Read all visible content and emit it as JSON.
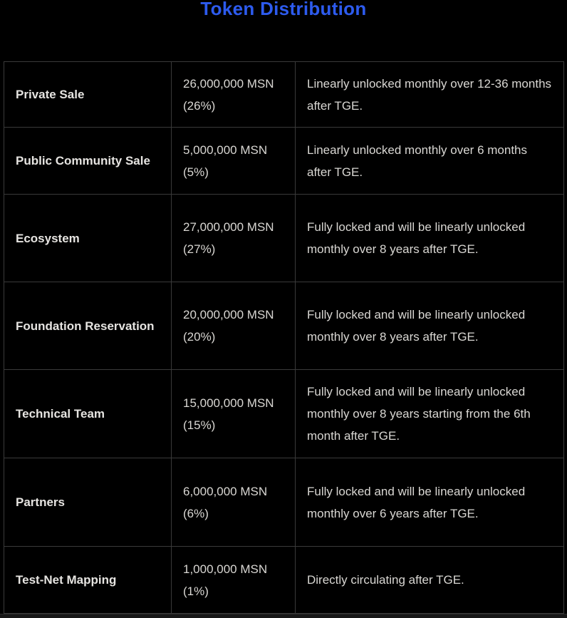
{
  "page": {
    "background": "#000000"
  },
  "title": {
    "text": "Token Distribution",
    "color": "#2d5bee"
  },
  "table": {
    "border_color": "#3a3a3a",
    "columns": [
      "category",
      "allocation",
      "unlock_schedule"
    ],
    "rows": [
      {
        "name": "Private Sale",
        "allocation": "26,000,000 MSN (26%)",
        "description": "Linearly unlocked monthly over 12-36 months after TGE."
      },
      {
        "name": "Public Community Sale",
        "allocation": "5,000,000 MSN (5%)",
        "description": "Linearly unlocked monthly over 6 months after TGE."
      },
      {
        "name": "Ecosystem",
        "allocation": "27,000,000 MSN (27%)",
        "description": "Fully locked and will be linearly unlocked monthly over 8 years after TGE."
      },
      {
        "name": "Foundation Reservation",
        "allocation": "20,000,000 MSN (20%)",
        "description": "Fully locked and will be linearly unlocked monthly over 8 years after TGE."
      },
      {
        "name": "Technical Team",
        "allocation": "15,000,000 MSN (15%)",
        "description": "Fully locked and will be linearly unlocked monthly over 8 years starting from the 6th month after TGE."
      },
      {
        "name": "Partners",
        "allocation": "6,000,000 MSN (6%)",
        "description": "Fully locked and will be linearly unlocked monthly over 6 years after TGE."
      },
      {
        "name": "Test-Net Mapping",
        "allocation": "1,000,000 MSN (1%)",
        "description": "Directly circulating after TGE."
      }
    ]
  }
}
